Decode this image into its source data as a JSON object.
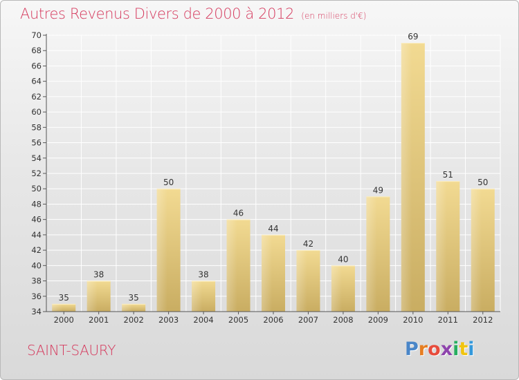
{
  "header": {
    "title": "Autres Revenus Divers de 2000 à 2012",
    "subtitle": "(en milliers d'€)"
  },
  "footer": {
    "city": "SAINT-SAURY",
    "logo_letters": [
      "P",
      "r",
      "o",
      "x",
      "i",
      "t",
      "i"
    ]
  },
  "colors": {
    "accent": "#d5395d",
    "bar_light": "#f2da92",
    "bar_dark": "#c9ad62",
    "logo": [
      "#4a86c8",
      "#e67e22",
      "#e74c3c",
      "#8e44ad",
      "#27ae60",
      "#f1c40f",
      "#3498db"
    ]
  },
  "chart_data": {
    "type": "bar",
    "title": "Autres Revenus Divers de 2000 à 2012",
    "subtitle": "(en milliers d'€)",
    "xlabel": "",
    "ylabel": "",
    "categories": [
      "2000",
      "2001",
      "2002",
      "2003",
      "2004",
      "2005",
      "2006",
      "2007",
      "2008",
      "2009",
      "2010",
      "2011",
      "2012"
    ],
    "values": [
      35,
      38,
      35,
      50,
      38,
      46,
      44,
      42,
      40,
      49,
      69,
      51,
      50
    ],
    "ylim": [
      34,
      70
    ],
    "yticks": [
      34,
      36,
      38,
      40,
      42,
      44,
      46,
      48,
      50,
      52,
      54,
      56,
      58,
      60,
      62,
      64,
      66,
      68,
      70
    ],
    "grid": true,
    "legend": "none"
  }
}
